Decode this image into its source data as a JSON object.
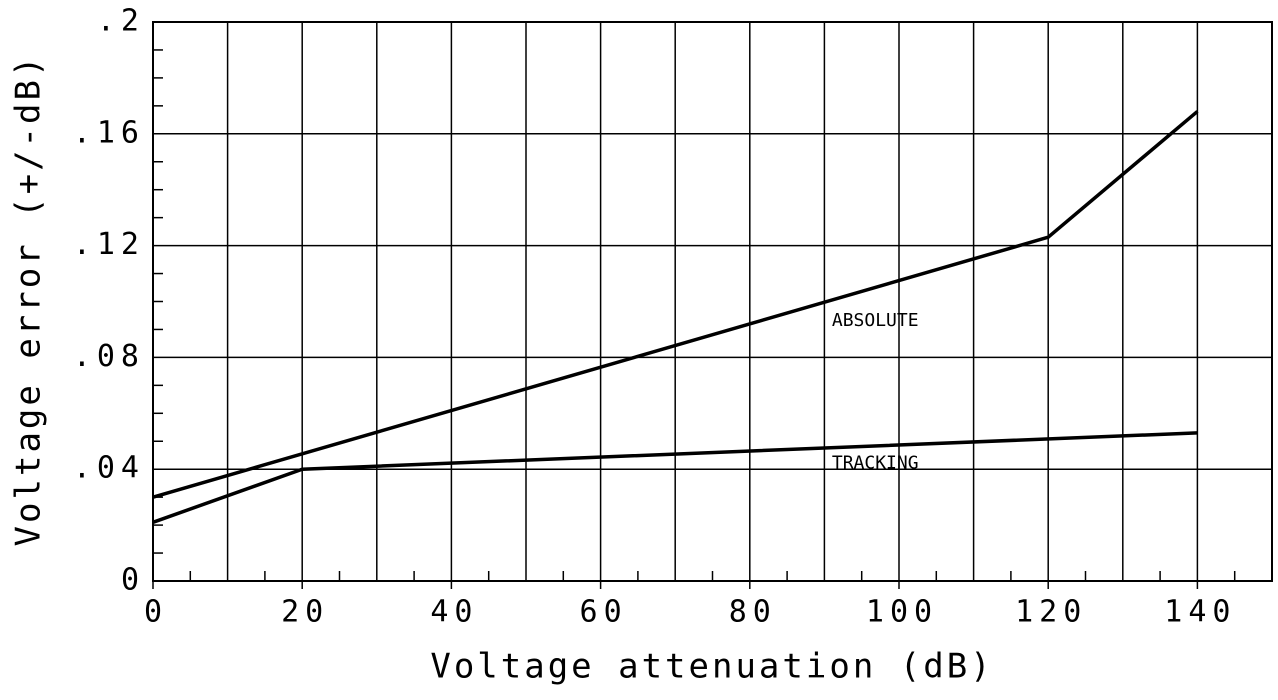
{
  "chart_data": {
    "type": "line",
    "xlabel": "Voltage attenuation (dB)",
    "ylabel": "Voltage error (+/-dB)",
    "series": [
      {
        "name": "ABSOLUTE",
        "color": "#000000",
        "x": [
          0,
          120,
          140
        ],
        "values": [
          0.03,
          0.123,
          0.168
        ]
      },
      {
        "name": "TRACKING",
        "color": "#000000",
        "x": [
          0,
          20,
          140
        ],
        "values": [
          0.021,
          0.04,
          0.053
        ]
      }
    ],
    "annotations": [
      {
        "text": "ABSOLUTE",
        "x": 91,
        "y": 0.093
      },
      {
        "text": "TRACKING",
        "x": 91,
        "y": 0.042
      }
    ],
    "xlim": [
      0,
      150
    ],
    "ylim": [
      0,
      0.2
    ],
    "xticks": [
      0,
      20,
      40,
      60,
      80,
      100,
      120,
      140
    ],
    "yticks": [
      0,
      {
        "value": 0.04,
        "label": ".04"
      },
      {
        "value": 0.08,
        "label": ".08"
      },
      {
        "value": 0.12,
        "label": ".12"
      },
      {
        "value": 0.16,
        "label": ".16"
      },
      {
        "value": 0.2,
        "label": ".2"
      }
    ],
    "xgrid": [
      10,
      20,
      30,
      40,
      50,
      60,
      70,
      80,
      90,
      100,
      110,
      120,
      130,
      140
    ],
    "xminorticks": [
      5,
      15,
      25,
      35,
      45,
      55,
      65,
      75,
      85,
      95,
      105,
      115,
      125,
      135,
      145
    ],
    "yminorticks": [
      0.01,
      0.02,
      0.03,
      0.05,
      0.06,
      0.07,
      0.09,
      0.1,
      0.11,
      0.13,
      0.14,
      0.15,
      0.17,
      0.18,
      0.19
    ],
    "grid": true
  }
}
